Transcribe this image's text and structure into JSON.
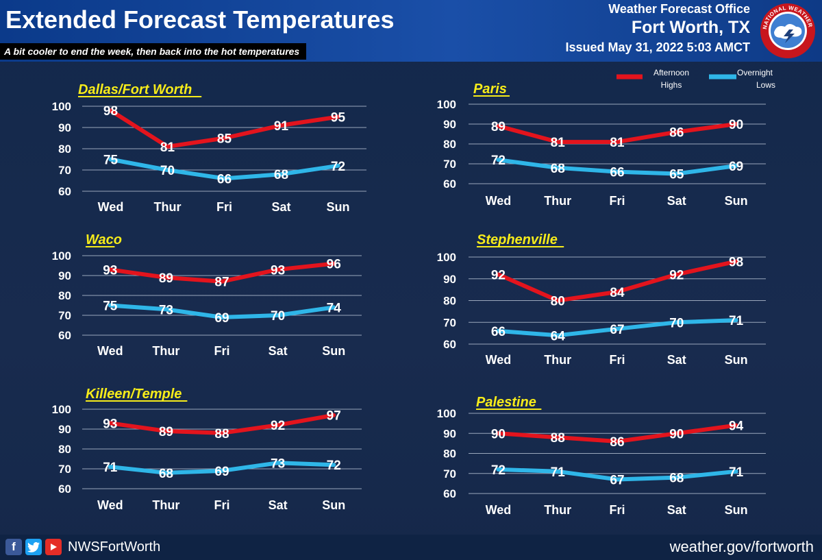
{
  "header": {
    "title": "Extended Forecast Temperatures",
    "subtitle": "A bit cooler to end the week, then back into the hot temperatures",
    "office": "Weather Forecast Office",
    "location": "Fort Worth, TX",
    "issued": "Issued May 31, 2022 5:03 AMCT",
    "logo_text": "NATIONAL WEATHER SERVICE"
  },
  "legend": {
    "highs_label": [
      "Afternoon",
      "Highs"
    ],
    "lows_label": [
      "Overnight",
      "Lows"
    ]
  },
  "footer": {
    "handle": "NWSFortWorth",
    "url": "weather.gov/fortworth",
    "icons": [
      "facebook-icon",
      "twitter-icon",
      "youtube-icon"
    ]
  },
  "colors": {
    "highs": "#e3141d",
    "lows": "#2fb6e8",
    "city_title": "#f7ec1a",
    "background": "#162a4c"
  },
  "chart_data": [
    {
      "type": "line",
      "title": "Dallas/Fort Worth",
      "categories": [
        "Wed",
        "Thur",
        "Fri",
        "Sat",
        "Sun"
      ],
      "ylim": [
        60,
        100
      ],
      "yticks": [
        60,
        70,
        80,
        90,
        100
      ],
      "grid": true,
      "series": [
        {
          "name": "Afternoon Highs",
          "values": [
            98,
            81,
            85,
            91,
            95
          ]
        },
        {
          "name": "Overnight Lows",
          "values": [
            75,
            70,
            66,
            68,
            72
          ]
        }
      ]
    },
    {
      "type": "line",
      "title": "Paris",
      "categories": [
        "Wed",
        "Thur",
        "Fri",
        "Sat",
        "Sun"
      ],
      "ylim": [
        60,
        100
      ],
      "yticks": [
        60,
        70,
        80,
        90,
        100
      ],
      "grid": true,
      "series": [
        {
          "name": "Afternoon Highs",
          "values": [
            89,
            81,
            81,
            86,
            90
          ]
        },
        {
          "name": "Overnight Lows",
          "values": [
            72,
            68,
            66,
            65,
            69
          ]
        }
      ]
    },
    {
      "type": "line",
      "title": "Waco",
      "categories": [
        "Wed",
        "Thur",
        "Fri",
        "Sat",
        "Sun"
      ],
      "ylim": [
        60,
        100
      ],
      "yticks": [
        60,
        70,
        80,
        90,
        100
      ],
      "grid": true,
      "series": [
        {
          "name": "Afternoon Highs",
          "values": [
            93,
            89,
            87,
            93,
            96
          ]
        },
        {
          "name": "Overnight Lows",
          "values": [
            75,
            73,
            69,
            70,
            74
          ]
        }
      ]
    },
    {
      "type": "line",
      "title": "Stephenville",
      "categories": [
        "Wed",
        "Thur",
        "Fri",
        "Sat",
        "Sun"
      ],
      "ylim": [
        60,
        100
      ],
      "yticks": [
        60,
        70,
        80,
        90,
        100
      ],
      "grid": true,
      "series": [
        {
          "name": "Afternoon Highs",
          "values": [
            92,
            80,
            84,
            92,
            98
          ]
        },
        {
          "name": "Overnight Lows",
          "values": [
            66,
            64,
            67,
            70,
            71
          ]
        }
      ]
    },
    {
      "type": "line",
      "title": "Killeen/Temple",
      "categories": [
        "Wed",
        "Thur",
        "Fri",
        "Sat",
        "Sun"
      ],
      "ylim": [
        60,
        100
      ],
      "yticks": [
        60,
        70,
        80,
        90,
        100
      ],
      "grid": true,
      "series": [
        {
          "name": "Afternoon Highs",
          "values": [
            93,
            89,
            88,
            92,
            97
          ]
        },
        {
          "name": "Overnight Lows",
          "values": [
            71,
            68,
            69,
            73,
            72
          ]
        }
      ]
    },
    {
      "type": "line",
      "title": "Palestine",
      "categories": [
        "Wed",
        "Thur",
        "Fri",
        "Sat",
        "Sun"
      ],
      "ylim": [
        60,
        100
      ],
      "yticks": [
        60,
        70,
        80,
        90,
        100
      ],
      "grid": true,
      "series": [
        {
          "name": "Afternoon Highs",
          "values": [
            90,
            88,
            86,
            90,
            94
          ]
        },
        {
          "name": "Overnight Lows",
          "values": [
            72,
            71,
            67,
            68,
            71
          ]
        }
      ]
    }
  ]
}
